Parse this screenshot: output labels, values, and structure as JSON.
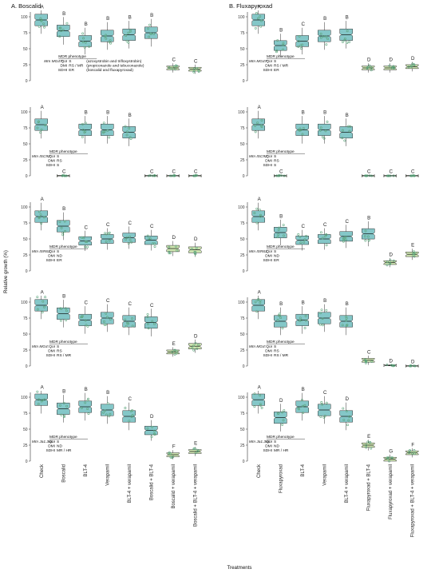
{
  "figure": {
    "ylabel": "Relative growth (%)",
    "xlabel": "Treatments",
    "titles": [
      "A. Boscalid",
      "B. Fluxapyroxad"
    ],
    "yticks": [
      0,
      25,
      50,
      75,
      100
    ],
    "colors": {
      "box": "#84c7c8",
      "box_low": "#cde4b0",
      "box_stroke": "#333333",
      "point": "#5aa37a",
      "resistant": "#d2222d"
    }
  },
  "chart_data": [
    {
      "type": "box",
      "panel": "A. Boscalid",
      "isolate": "Mm MG47",
      "header": "MDR  phenotype",
      "phenotype": [
        {
          "trait": "QoI",
          "call": "S",
          "note": "(azoxystrobin and trifloxystrobin)"
        },
        {
          "trait": "DMI",
          "call": "RS / MR",
          "note": "(propiconazole and tebuconazole)"
        },
        {
          "trait": "SDHI",
          "call": "ER",
          "note": "(boscalid and fluxapyroxad)"
        }
      ],
      "categories": [
        "Check",
        "Boscalid",
        "BLT-4",
        "Verapamil",
        "BLT-4 + verapamil",
        "Boscalid + BLT-4",
        "Boscalid + verapamil",
        "Boscalid + BLT-4 + verapamil"
      ],
      "medians": [
        95,
        78,
        62,
        70,
        72,
        75,
        20,
        18
      ],
      "letters": [
        "A",
        "B",
        "B",
        "B",
        "B",
        "B",
        "C",
        "C"
      ],
      "ylim": [
        0,
        110
      ]
    },
    {
      "type": "box",
      "panel": "B. Fluxapyroxad",
      "isolate": "Mm MG47",
      "header": "MDR  phenotype",
      "phenotype": [
        {
          "trait": "QoI",
          "call": "S",
          "note": ""
        },
        {
          "trait": "DMI",
          "call": "RS / MR",
          "note": ""
        },
        {
          "trait": "SDHI",
          "call": "ER",
          "note": ""
        }
      ],
      "categories": [
        "Check",
        "Fluxapyroxad",
        "BLT-4",
        "Verapamil",
        "BLT-4 + verapamil",
        "Fluxapyroxad + BLT-4",
        "Fluxapyroxad + verapamil",
        "Fluxapyroxad + BLT-4 + verapamil"
      ],
      "medians": [
        95,
        55,
        62,
        70,
        72,
        20,
        20,
        22
      ],
      "letters": [
        "A",
        "B",
        "C",
        "B",
        "B",
        "D",
        "D",
        "D"
      ],
      "ylim": [
        0,
        110
      ]
    },
    {
      "type": "box",
      "panel": "A. Boscalid",
      "isolate": "Mm ISC92",
      "header": "MDR  phenotype",
      "phenotype": [
        {
          "trait": "QoI",
          "call": "S",
          "note": ""
        },
        {
          "trait": "DMI",
          "call": "RS",
          "note": ""
        },
        {
          "trait": "SDHI",
          "call": "S",
          "note": ""
        }
      ],
      "categories": [
        "Check",
        "Boscalid",
        "BLT-4",
        "Verapamil",
        "BLT-4 + verapamil",
        "Boscalid + BLT-4",
        "Boscalid + verapamil",
        "Boscalid + BLT-4 + verapamil"
      ],
      "medians": [
        80,
        0,
        72,
        72,
        68,
        0,
        0,
        0
      ],
      "letters": [
        "A",
        "C",
        "B",
        "B",
        "B",
        "C",
        "C",
        "C"
      ],
      "ylim": [
        0,
        110
      ]
    },
    {
      "type": "box",
      "panel": "B. Fluxapyroxad",
      "isolate": "Mm ISC92",
      "header": "MDR  phenotype",
      "phenotype": [
        {
          "trait": "QoI",
          "call": "S",
          "note": ""
        },
        {
          "trait": "DMI",
          "call": "RS",
          "note": ""
        },
        {
          "trait": "SDHI",
          "call": "S",
          "note": ""
        }
      ],
      "categories": [
        "Check",
        "Fluxapyroxad",
        "BLT-4",
        "Verapamil",
        "BLT-4 + verapamil",
        "Fluxapyroxad + BLT-4",
        "Fluxapyroxad + verapamil",
        "Fluxapyroxad + BLT-4 + verapamil"
      ],
      "medians": [
        80,
        0,
        72,
        72,
        68,
        0,
        0,
        0
      ],
      "letters": [
        "A",
        "C",
        "B",
        "B",
        "B",
        "C",
        "C",
        "C"
      ],
      "ylim": [
        0,
        110
      ]
    },
    {
      "type": "box",
      "panel": "A. Boscalid",
      "isolate": "Mm ISR61",
      "header": "MDR  phenotype",
      "phenotype": [
        {
          "trait": "QoI",
          "call": "S",
          "note": ""
        },
        {
          "trait": "DMI",
          "call": "ND",
          "note": ""
        },
        {
          "trait": "SDHI",
          "call": "ER",
          "note": ""
        }
      ],
      "categories": [
        "Check",
        "Boscalid",
        "BLT-4",
        "Verapamil",
        "BLT-4 + verapamil",
        "Boscalid + BLT-4",
        "Boscalid + verapamil",
        "Boscalid + BLT-4 + verapamil"
      ],
      "medians": [
        85,
        70,
        47,
        50,
        52,
        48,
        35,
        33
      ],
      "letters": [
        "A",
        "B",
        "C",
        "C",
        "C",
        "C",
        "D",
        "D"
      ],
      "ylim": [
        0,
        110
      ]
    },
    {
      "type": "box",
      "panel": "B. Fluxapyroxad",
      "isolate": "Mm ISR61",
      "header": "MDR  phenotype",
      "phenotype": [
        {
          "trait": "QoI",
          "call": "S",
          "note": ""
        },
        {
          "trait": "DMI",
          "call": "ND",
          "note": ""
        },
        {
          "trait": "SDHI",
          "call": "ER",
          "note": ""
        }
      ],
      "categories": [
        "Check",
        "Fluxapyroxad",
        "BLT-4",
        "Verapamil",
        "BLT-4 + verapamil",
        "Fluxapyroxad + BLT-4",
        "Fluxapyroxad + verapamil",
        "Fluxapyroxad + BLT-4 + verapamil"
      ],
      "medians": [
        85,
        60,
        48,
        50,
        54,
        58,
        13,
        26
      ],
      "letters": [
        "A",
        "B",
        "C",
        "C",
        "C",
        "B",
        "D",
        "E"
      ],
      "ylim": [
        0,
        110
      ]
    },
    {
      "type": "box",
      "panel": "A. Boscalid",
      "isolate": "Mm MG4",
      "header": "MDR  phenotype",
      "phenotype": [
        {
          "trait": "QoI",
          "call": "S",
          "note": ""
        },
        {
          "trait": "DMI",
          "call": "RS",
          "note": ""
        },
        {
          "trait": "SDHI",
          "call": "RS / MR",
          "note": ""
        }
      ],
      "categories": [
        "Check",
        "Boscalid",
        "BLT-4",
        "Verapamil",
        "BLT-4 + verapamil",
        "Boscalid + BLT-4",
        "Boscalid + verapamil",
        "Boscalid + BLT-4 + verapamil"
      ],
      "medians": [
        95,
        82,
        72,
        75,
        70,
        68,
        22,
        31
      ],
      "letters": [
        "A",
        "B",
        "C",
        "C",
        "C",
        "C",
        "E",
        "D"
      ],
      "ylim": [
        0,
        110
      ]
    },
    {
      "type": "box",
      "panel": "B. Fluxapyroxad",
      "isolate": "Mm MG4",
      "header": "MDR  phenotype",
      "phenotype": [
        {
          "trait": "QoI",
          "call": "S",
          "note": ""
        },
        {
          "trait": "DMI",
          "call": "RS",
          "note": ""
        },
        {
          "trait": "SDHI",
          "call": "RS / MR",
          "note": ""
        }
      ],
      "categories": [
        "Check",
        "Fluxapyroxad",
        "BLT-4",
        "Verapamil",
        "BLT-4 + verapamil",
        "Fluxapyroxad + BLT-4",
        "Fluxapyroxad + verapamil",
        "Fluxapyroxad + BLT-4 + verapamil"
      ],
      "medians": [
        95,
        70,
        72,
        75,
        70,
        9,
        1,
        0
      ],
      "letters": [
        "A",
        "B",
        "B",
        "B",
        "B",
        "C",
        "D",
        "D"
      ],
      "ylim": [
        0,
        110
      ]
    },
    {
      "type": "box",
      "panel": "A. Boscalid",
      "isolate": "Mm Ja1.38c",
      "header": "MDR  phenotype",
      "phenotype": [
        {
          "trait": "QoI",
          "call": "S",
          "note": ""
        },
        {
          "trait": "DMI",
          "call": "ND",
          "note": ""
        },
        {
          "trait": "SDHI",
          "call": "MR / HR",
          "note": ""
        }
      ],
      "categories": [
        "Check",
        "Boscalid",
        "BLT-4",
        "Verapamil",
        "BLT-4 + verapamil",
        "Boscalid + BLT-4",
        "Boscalid + verapamil",
        "Boscalid + BLT-4 + verapamil"
      ],
      "medians": [
        96,
        82,
        85,
        80,
        70,
        48,
        10,
        15
      ],
      "letters": [
        "A",
        "B",
        "B",
        "B",
        "C",
        "D",
        "F",
        "E"
      ],
      "ylim": [
        0,
        110
      ]
    },
    {
      "type": "box",
      "panel": "B. Fluxapyroxad",
      "isolate": "Mm Ja1.38c",
      "header": "MDR  phenotype",
      "phenotype": [
        {
          "trait": "QoI",
          "call": "S",
          "note": ""
        },
        {
          "trait": "DMI",
          "call": "ND",
          "note": ""
        },
        {
          "trait": "SDHI",
          "call": "MR / HR",
          "note": ""
        }
      ],
      "categories": [
        "Check",
        "Fluxapyroxad",
        "BLT-4",
        "Verapamil",
        "BLT-4 + verapamil",
        "Fluxapyroxad + BLT-4",
        "Fluxapyroxad + verapamil",
        "Fluxapyroxad + BLT-4 + verapamil"
      ],
      "medians": [
        96,
        68,
        85,
        80,
        70,
        25,
        3,
        13
      ],
      "letters": [
        "A",
        "D",
        "B",
        "C",
        "D",
        "E",
        "G",
        "F"
      ],
      "ylim": [
        0,
        110
      ]
    }
  ]
}
